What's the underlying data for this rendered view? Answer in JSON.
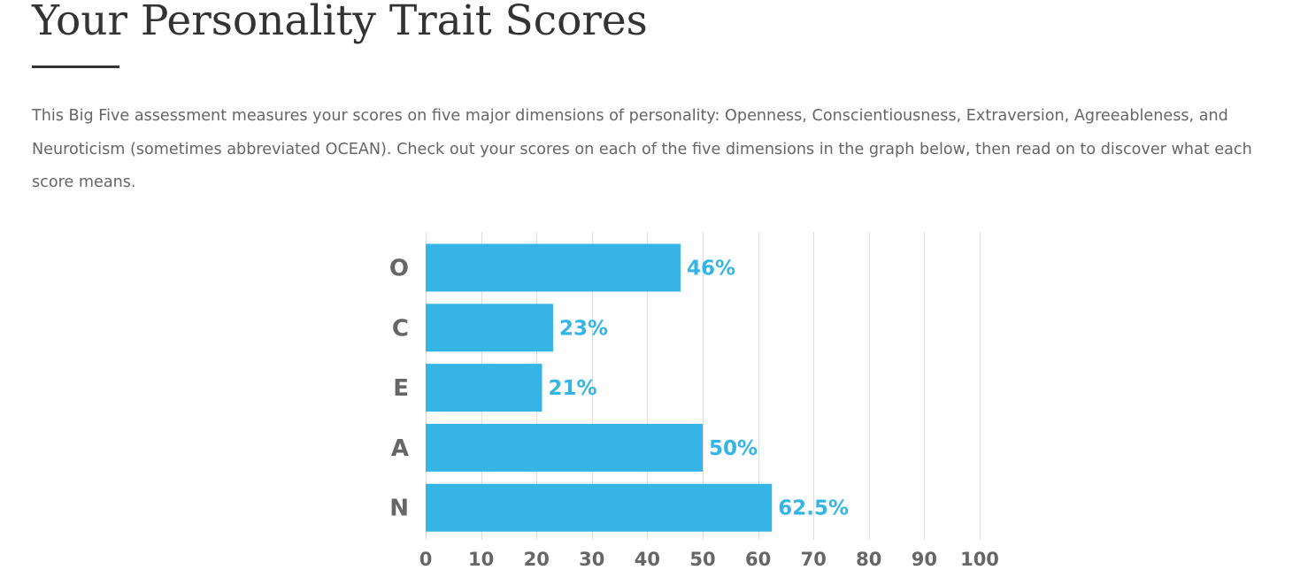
{
  "header": {
    "title": "Your Personality Trait Scores"
  },
  "intro": {
    "text": "This Big Five assessment measures your scores on five major dimensions of personality: Openness, Conscientiousness, Extraversion, Agreeableness, and Neuroticism (sometimes abbreviated OCEAN). Check out your scores on each of the five dimensions in the graph below, then read on to discover what each score means."
  },
  "colors": {
    "bar": "#35b5e5",
    "value_label": "#35b5e5",
    "category_label": "#666666",
    "gridline": "#dddddd"
  },
  "chart_data": {
    "type": "bar",
    "orientation": "horizontal",
    "categories": [
      "O",
      "C",
      "E",
      "A",
      "N"
    ],
    "values": [
      46,
      23,
      21,
      50,
      62.5
    ],
    "value_labels": [
      "46%",
      "23%",
      "21%",
      "50%",
      "62.5%"
    ],
    "xticks": [
      0,
      10,
      20,
      30,
      40,
      50,
      60,
      70,
      80,
      90,
      100
    ],
    "xlim": [
      0,
      100
    ],
    "grid": true,
    "legend": "none"
  }
}
